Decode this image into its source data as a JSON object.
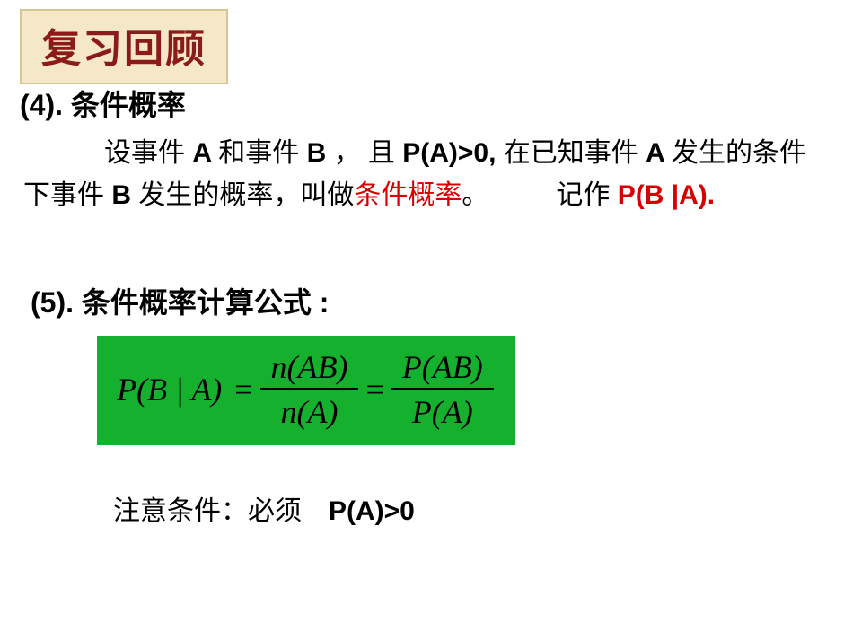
{
  "colors": {
    "banner_bg": "#f5e8c8",
    "banner_border": "#d4c890",
    "banner_text": "#8b1a1a",
    "accent_red": "#d60000",
    "formula_bg": "#15b02e",
    "text": "#000000",
    "page_bg": "#ffffff"
  },
  "title": "复习回顾",
  "section4": {
    "heading": "(4). 条件概率",
    "body_indent": "　　　",
    "body_part1": "设事件",
    "body_A1": " A ",
    "body_part2": "和事件",
    "body_B1": " B ",
    "body_part3": "， 且",
    "body_cond": " P(A)>0, ",
    "body_part4": "在已知事件",
    "body_A2": " A ",
    "body_part5": "发生的条件下事件",
    "body_B2": " B ",
    "body_part6": "发生的概率，叫做",
    "term_red": "条件概率",
    "body_part7": "。　　　记作 ",
    "notation_red": "P(B |A)."
  },
  "section5": {
    "heading": "(5). 条件概率计算公式 :",
    "formula": {
      "lhs": "P(B | A)",
      "eq1": "=",
      "frac1_num": "n(AB)",
      "frac1_den": "n(A)",
      "eq2": "=",
      "frac2_num": "P(AB)",
      "frac2_den": "P(A)"
    }
  },
  "note": {
    "label": "注意条件：必须 ",
    "cond": "P(A)>0"
  }
}
